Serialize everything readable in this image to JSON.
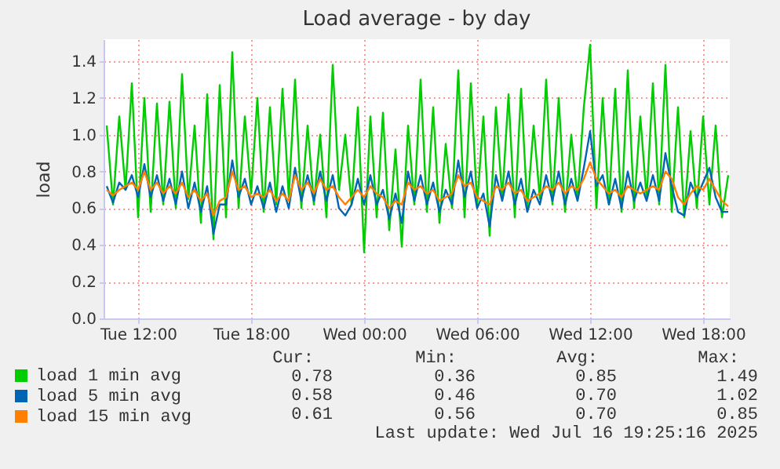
{
  "chart_data": {
    "type": "line",
    "title": "Load average - by day",
    "ylabel": "load",
    "x": [
      "2025-07-15T10:20",
      "2025-07-15T10:40",
      "2025-07-15T11:00",
      "2025-07-15T11:20",
      "2025-07-15T11:40",
      "2025-07-15T12:00",
      "2025-07-15T12:20",
      "2025-07-15T12:40",
      "2025-07-15T13:00",
      "2025-07-15T13:20",
      "2025-07-15T13:40",
      "2025-07-15T14:00",
      "2025-07-15T14:20",
      "2025-07-15T14:40",
      "2025-07-15T15:00",
      "2025-07-15T15:20",
      "2025-07-15T15:40",
      "2025-07-15T16:00",
      "2025-07-15T16:20",
      "2025-07-15T16:40",
      "2025-07-15T17:00",
      "2025-07-15T17:20",
      "2025-07-15T17:40",
      "2025-07-15T18:00",
      "2025-07-15T18:20",
      "2025-07-15T18:40",
      "2025-07-15T19:00",
      "2025-07-15T19:20",
      "2025-07-15T19:40",
      "2025-07-15T20:00",
      "2025-07-15T20:20",
      "2025-07-15T20:40",
      "2025-07-15T21:00",
      "2025-07-15T21:20",
      "2025-07-15T21:40",
      "2025-07-15T22:00",
      "2025-07-15T22:20",
      "2025-07-15T22:40",
      "2025-07-15T23:00",
      "2025-07-15T23:20",
      "2025-07-15T23:40",
      "2025-07-16T00:00",
      "2025-07-16T00:20",
      "2025-07-16T00:40",
      "2025-07-16T01:00",
      "2025-07-16T01:20",
      "2025-07-16T01:40",
      "2025-07-16T02:00",
      "2025-07-16T02:20",
      "2025-07-16T02:40",
      "2025-07-16T03:00",
      "2025-07-16T03:20",
      "2025-07-16T03:40",
      "2025-07-16T04:00",
      "2025-07-16T04:20",
      "2025-07-16T04:40",
      "2025-07-16T05:00",
      "2025-07-16T05:20",
      "2025-07-16T05:40",
      "2025-07-16T06:00",
      "2025-07-16T06:20",
      "2025-07-16T06:40",
      "2025-07-16T07:00",
      "2025-07-16T07:20",
      "2025-07-16T07:40",
      "2025-07-16T08:00",
      "2025-07-16T08:20",
      "2025-07-16T08:40",
      "2025-07-16T09:00",
      "2025-07-16T09:20",
      "2025-07-16T09:40",
      "2025-07-16T10:00",
      "2025-07-16T10:20",
      "2025-07-16T10:40",
      "2025-07-16T11:00",
      "2025-07-16T11:20",
      "2025-07-16T11:40",
      "2025-07-16T12:00",
      "2025-07-16T12:20",
      "2025-07-16T12:40",
      "2025-07-16T13:00",
      "2025-07-16T13:20",
      "2025-07-16T13:40",
      "2025-07-16T14:00",
      "2025-07-16T14:20",
      "2025-07-16T14:40",
      "2025-07-16T15:00",
      "2025-07-16T15:20",
      "2025-07-16T15:40",
      "2025-07-16T16:00",
      "2025-07-16T16:20",
      "2025-07-16T16:40",
      "2025-07-16T17:00",
      "2025-07-16T17:20",
      "2025-07-16T17:40",
      "2025-07-16T18:00",
      "2025-07-16T18:20",
      "2025-07-16T18:40",
      "2025-07-16T19:00",
      "2025-07-16T19:20"
    ],
    "series": [
      {
        "name": "load 1 min avg",
        "color": "#00cc00",
        "values": [
          1.05,
          0.62,
          1.1,
          0.7,
          1.28,
          0.55,
          1.2,
          0.58,
          1.17,
          0.62,
          1.18,
          0.6,
          1.33,
          0.65,
          1.05,
          0.52,
          1.22,
          0.43,
          1.27,
          0.55,
          1.45,
          0.6,
          1.1,
          0.68,
          1.2,
          0.58,
          1.15,
          0.62,
          1.25,
          0.66,
          1.3,
          0.6,
          1.05,
          0.62,
          1.0,
          0.55,
          1.38,
          0.7,
          1.0,
          0.62,
          1.15,
          0.36,
          1.1,
          0.55,
          1.12,
          0.48,
          0.92,
          0.39,
          1.05,
          0.62,
          1.3,
          0.58,
          1.15,
          0.52,
          0.95,
          0.6,
          1.35,
          0.55,
          1.28,
          0.62,
          1.1,
          0.45,
          1.15,
          0.65,
          1.22,
          0.55,
          1.25,
          0.6,
          1.05,
          0.65,
          1.3,
          0.62,
          1.2,
          0.58,
          1.0,
          0.65,
          1.15,
          1.49,
          0.6,
          1.2,
          0.62,
          1.25,
          0.58,
          1.35,
          0.6,
          1.1,
          0.65,
          1.28,
          0.62,
          1.38,
          0.58,
          1.15,
          0.55,
          1.02,
          0.6,
          1.1,
          0.62,
          1.05,
          0.55,
          0.78
        ]
      },
      {
        "name": "load 5 min avg",
        "color": "#0066b3",
        "values": [
          0.72,
          0.63,
          0.74,
          0.7,
          0.78,
          0.66,
          0.84,
          0.66,
          0.78,
          0.64,
          0.76,
          0.62,
          0.8,
          0.6,
          0.74,
          0.58,
          0.72,
          0.46,
          0.62,
          0.62,
          0.86,
          0.66,
          0.76,
          0.62,
          0.72,
          0.6,
          0.74,
          0.58,
          0.72,
          0.6,
          0.82,
          0.64,
          0.78,
          0.64,
          0.8,
          0.64,
          0.78,
          0.6,
          0.56,
          0.62,
          0.76,
          0.62,
          0.78,
          0.62,
          0.7,
          0.54,
          0.68,
          0.52,
          0.8,
          0.64,
          0.78,
          0.62,
          0.74,
          0.58,
          0.7,
          0.62,
          0.86,
          0.66,
          0.8,
          0.6,
          0.68,
          0.5,
          0.78,
          0.64,
          0.8,
          0.62,
          0.76,
          0.58,
          0.7,
          0.62,
          0.78,
          0.64,
          0.8,
          0.62,
          0.76,
          0.64,
          0.82,
          1.02,
          0.72,
          0.78,
          0.62,
          0.76,
          0.6,
          0.8,
          0.64,
          0.74,
          0.64,
          0.78,
          0.64,
          0.9,
          0.72,
          0.58,
          0.56,
          0.74,
          0.66,
          0.74,
          0.82,
          0.66,
          0.58,
          0.58
        ]
      },
      {
        "name": "load 15 min avg",
        "color": "#ff8000",
        "values": [
          0.7,
          0.67,
          0.7,
          0.72,
          0.74,
          0.7,
          0.8,
          0.7,
          0.74,
          0.68,
          0.72,
          0.68,
          0.74,
          0.66,
          0.7,
          0.64,
          0.68,
          0.56,
          0.64,
          0.66,
          0.8,
          0.7,
          0.72,
          0.66,
          0.68,
          0.66,
          0.7,
          0.64,
          0.68,
          0.64,
          0.78,
          0.7,
          0.74,
          0.68,
          0.76,
          0.7,
          0.72,
          0.66,
          0.62,
          0.66,
          0.7,
          0.66,
          0.72,
          0.68,
          0.66,
          0.6,
          0.64,
          0.62,
          0.74,
          0.7,
          0.72,
          0.68,
          0.7,
          0.64,
          0.66,
          0.68,
          0.78,
          0.72,
          0.74,
          0.66,
          0.64,
          0.62,
          0.72,
          0.7,
          0.74,
          0.68,
          0.7,
          0.64,
          0.66,
          0.68,
          0.72,
          0.7,
          0.74,
          0.68,
          0.72,
          0.7,
          0.76,
          0.85,
          0.76,
          0.72,
          0.68,
          0.7,
          0.66,
          0.72,
          0.7,
          0.68,
          0.7,
          0.72,
          0.7,
          0.8,
          0.76,
          0.66,
          0.62,
          0.68,
          0.72,
          0.7,
          0.76,
          0.7,
          0.64,
          0.61
        ]
      }
    ],
    "xlim": [
      "2025-07-15T10:10",
      "2025-07-16T19:25"
    ],
    "xticks": [
      {
        "value": "2025-07-15T12:00",
        "label": "Tue 12:00"
      },
      {
        "value": "2025-07-15T18:00",
        "label": "Tue 18:00"
      },
      {
        "value": "2025-07-16T00:00",
        "label": "Wed 00:00"
      },
      {
        "value": "2025-07-16T06:00",
        "label": "Wed 06:00"
      },
      {
        "value": "2025-07-16T12:00",
        "label": "Wed 12:00"
      },
      {
        "value": "2025-07-16T18:00",
        "label": "Wed 18:00"
      }
    ],
    "ylim": [
      0,
      1.52
    ],
    "yticks": [
      {
        "value": 0,
        "label": "0.0"
      },
      {
        "value": 0.2,
        "label": "0.2"
      },
      {
        "value": 0.4,
        "label": "0.4"
      },
      {
        "value": 0.6,
        "label": "0.6"
      },
      {
        "value": 0.8,
        "label": "0.8"
      },
      {
        "value": 1.0,
        "label": "1.0"
      },
      {
        "value": 1.2,
        "label": "1.2"
      },
      {
        "value": 1.4,
        "label": "1.4"
      }
    ],
    "grid": true,
    "legend": "bottom left",
    "marker": "none",
    "line_style": "solid",
    "annotations": [
      "Cur:",
      "Min:",
      "Avg:",
      "Max:",
      "0.78",
      "0.36",
      "0.85",
      "1.49",
      "0.58",
      "0.46",
      "0.70",
      "1.02",
      "0.61",
      "0.56",
      "0.70",
      "0.85",
      "Last update: Wed Jul 16 19:25:16 2025"
    ]
  }
}
